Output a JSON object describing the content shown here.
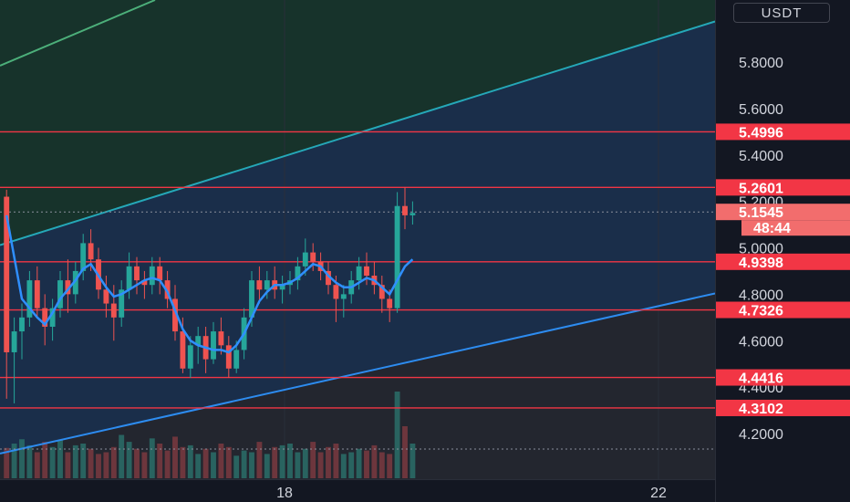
{
  "currency": "USDT",
  "time_labels": [
    "18",
    "22"
  ],
  "chart_data": {
    "type": "candlestick",
    "ylim": [
      4.01,
      6.01
    ],
    "y_ticks": [
      5.8,
      5.6,
      5.4,
      5.2,
      5.0,
      4.8,
      4.6,
      4.4,
      4.2
    ],
    "y_tick_labels": [
      "5.8000",
      "5.6000",
      "5.4000",
      "5.2000",
      "5.0000",
      "4.8000",
      "4.6000",
      "4.4000",
      "4.2000"
    ],
    "horizontal_levels": [
      {
        "value": 5.4996,
        "label": "5.4996"
      },
      {
        "value": 5.2601,
        "label": "5.2601"
      },
      {
        "value": 4.9398,
        "label": "4.9398"
      },
      {
        "value": 4.7326,
        "label": "4.7326"
      },
      {
        "value": 4.4416,
        "label": "4.4416"
      },
      {
        "value": 4.3102,
        "label": "4.3102"
      }
    ],
    "last_price": {
      "value": 5.1545,
      "label": "5.1545",
      "countdown": "48:44"
    },
    "candles": [
      [
        5.22,
        5.25,
        4.35,
        4.55
      ],
      [
        4.55,
        4.7,
        4.33,
        4.64
      ],
      [
        4.64,
        4.76,
        4.52,
        4.7
      ],
      [
        4.7,
        4.9,
        4.66,
        4.86
      ],
      [
        4.86,
        4.92,
        4.7,
        4.74
      ],
      [
        4.74,
        4.8,
        4.58,
        4.66
      ],
      [
        4.66,
        4.78,
        4.6,
        4.74
      ],
      [
        4.74,
        4.9,
        4.7,
        4.86
      ],
      [
        4.86,
        4.95,
        4.72,
        4.8
      ],
      [
        4.8,
        4.94,
        4.76,
        4.9
      ],
      [
        4.9,
        5.06,
        4.86,
        5.02
      ],
      [
        5.02,
        5.08,
        4.9,
        4.95
      ],
      [
        4.95,
        5.0,
        4.78,
        4.82
      ],
      [
        4.82,
        4.88,
        4.7,
        4.76
      ],
      [
        4.76,
        4.84,
        4.6,
        4.7
      ],
      [
        4.7,
        4.86,
        4.66,
        4.82
      ],
      [
        4.82,
        4.98,
        4.78,
        4.92
      ],
      [
        4.92,
        4.96,
        4.8,
        4.86
      ],
      [
        4.86,
        4.9,
        4.78,
        4.84
      ],
      [
        4.84,
        4.96,
        4.8,
        4.92
      ],
      [
        4.92,
        4.96,
        4.8,
        4.86
      ],
      [
        4.86,
        4.9,
        4.74,
        4.78
      ],
      [
        4.78,
        4.84,
        4.6,
        4.64
      ],
      [
        4.64,
        4.7,
        4.46,
        4.48
      ],
      [
        4.48,
        4.62,
        4.44,
        4.58
      ],
      [
        4.58,
        4.66,
        4.5,
        4.62
      ],
      [
        4.62,
        4.66,
        4.46,
        4.52
      ],
      [
        4.52,
        4.68,
        4.5,
        4.64
      ],
      [
        4.64,
        4.7,
        4.54,
        4.58
      ],
      [
        4.58,
        4.62,
        4.44,
        4.48
      ],
      [
        4.48,
        4.6,
        4.46,
        4.56
      ],
      [
        4.56,
        4.74,
        4.52,
        4.7
      ],
      [
        4.7,
        4.9,
        4.66,
        4.86
      ],
      [
        4.86,
        4.92,
        4.76,
        4.82
      ],
      [
        4.82,
        4.9,
        4.78,
        4.86
      ],
      [
        4.86,
        4.92,
        4.78,
        4.82
      ],
      [
        4.82,
        4.88,
        4.76,
        4.84
      ],
      [
        4.84,
        4.9,
        4.8,
        4.86
      ],
      [
        4.86,
        4.96,
        4.82,
        4.92
      ],
      [
        4.92,
        5.04,
        4.88,
        4.98
      ],
      [
        4.98,
        5.02,
        4.9,
        4.94
      ],
      [
        4.94,
        4.98,
        4.86,
        4.9
      ],
      [
        4.9,
        4.94,
        4.8,
        4.84
      ],
      [
        4.84,
        4.88,
        4.68,
        4.78
      ],
      [
        4.78,
        4.84,
        4.7,
        4.8
      ],
      [
        4.8,
        4.9,
        4.76,
        4.86
      ],
      [
        4.86,
        4.96,
        4.82,
        4.92
      ],
      [
        4.92,
        4.98,
        4.84,
        4.88
      ],
      [
        4.88,
        4.94,
        4.8,
        4.84
      ],
      [
        4.84,
        4.88,
        4.72,
        4.78
      ],
      [
        4.78,
        4.82,
        4.68,
        4.74
      ],
      [
        4.74,
        5.24,
        4.72,
        5.18
      ],
      [
        5.18,
        5.26,
        5.08,
        5.14
      ],
      [
        5.14,
        5.2,
        5.1,
        5.15
      ]
    ],
    "moving_average": [
      [
        0,
        5.14
      ],
      [
        1,
        4.96
      ],
      [
        2,
        4.78
      ],
      [
        3,
        4.74
      ],
      [
        4,
        4.7
      ],
      [
        5,
        4.67
      ],
      [
        6,
        4.72
      ],
      [
        7,
        4.78
      ],
      [
        8,
        4.82
      ],
      [
        9,
        4.86
      ],
      [
        10,
        4.91
      ],
      [
        11,
        4.93
      ],
      [
        12,
        4.88
      ],
      [
        13,
        4.83
      ],
      [
        14,
        4.79
      ],
      [
        15,
        4.8
      ],
      [
        16,
        4.82
      ],
      [
        17,
        4.84
      ],
      [
        18,
        4.86
      ],
      [
        19,
        4.87
      ],
      [
        20,
        4.86
      ],
      [
        21,
        4.81
      ],
      [
        22,
        4.73
      ],
      [
        23,
        4.65
      ],
      [
        24,
        4.6
      ],
      [
        25,
        4.58
      ],
      [
        26,
        4.57
      ],
      [
        27,
        4.56
      ],
      [
        28,
        4.56
      ],
      [
        29,
        4.55
      ],
      [
        30,
        4.58
      ],
      [
        31,
        4.63
      ],
      [
        32,
        4.7
      ],
      [
        33,
        4.77
      ],
      [
        34,
        4.81
      ],
      [
        35,
        4.84
      ],
      [
        36,
        4.84
      ],
      [
        37,
        4.85
      ],
      [
        38,
        4.87
      ],
      [
        39,
        4.9
      ],
      [
        40,
        4.93
      ],
      [
        41,
        4.92
      ],
      [
        42,
        4.88
      ],
      [
        43,
        4.85
      ],
      [
        44,
        4.83
      ],
      [
        45,
        4.83
      ],
      [
        46,
        4.85
      ],
      [
        47,
        4.87
      ],
      [
        48,
        4.86
      ],
      [
        49,
        4.83
      ],
      [
        50,
        4.8
      ],
      [
        51,
        4.86
      ],
      [
        52,
        4.92
      ],
      [
        53,
        4.95
      ]
    ],
    "volume": [
      0.35,
      0.4,
      0.45,
      0.38,
      0.3,
      0.42,
      0.36,
      0.44,
      0.3,
      0.38,
      0.4,
      0.34,
      0.28,
      0.3,
      0.36,
      0.5,
      0.42,
      0.34,
      0.3,
      0.46,
      0.4,
      0.32,
      0.48,
      0.36,
      0.38,
      0.28,
      0.34,
      0.3,
      0.4,
      0.36,
      0.26,
      0.32,
      0.3,
      0.42,
      0.28,
      0.36,
      0.38,
      0.4,
      0.3,
      0.34,
      0.42,
      0.3,
      0.36,
      0.4,
      0.28,
      0.3,
      0.34,
      0.32,
      0.38,
      0.3,
      0.28,
      1.0,
      0.6,
      0.4
    ],
    "trend_channel": {
      "upper_line": [
        [
          0,
          5.02
        ],
        [
          92,
          5.97
        ]
      ],
      "lower_line": [
        [
          0,
          4.12
        ],
        [
          92,
          4.8
        ]
      ]
    }
  }
}
